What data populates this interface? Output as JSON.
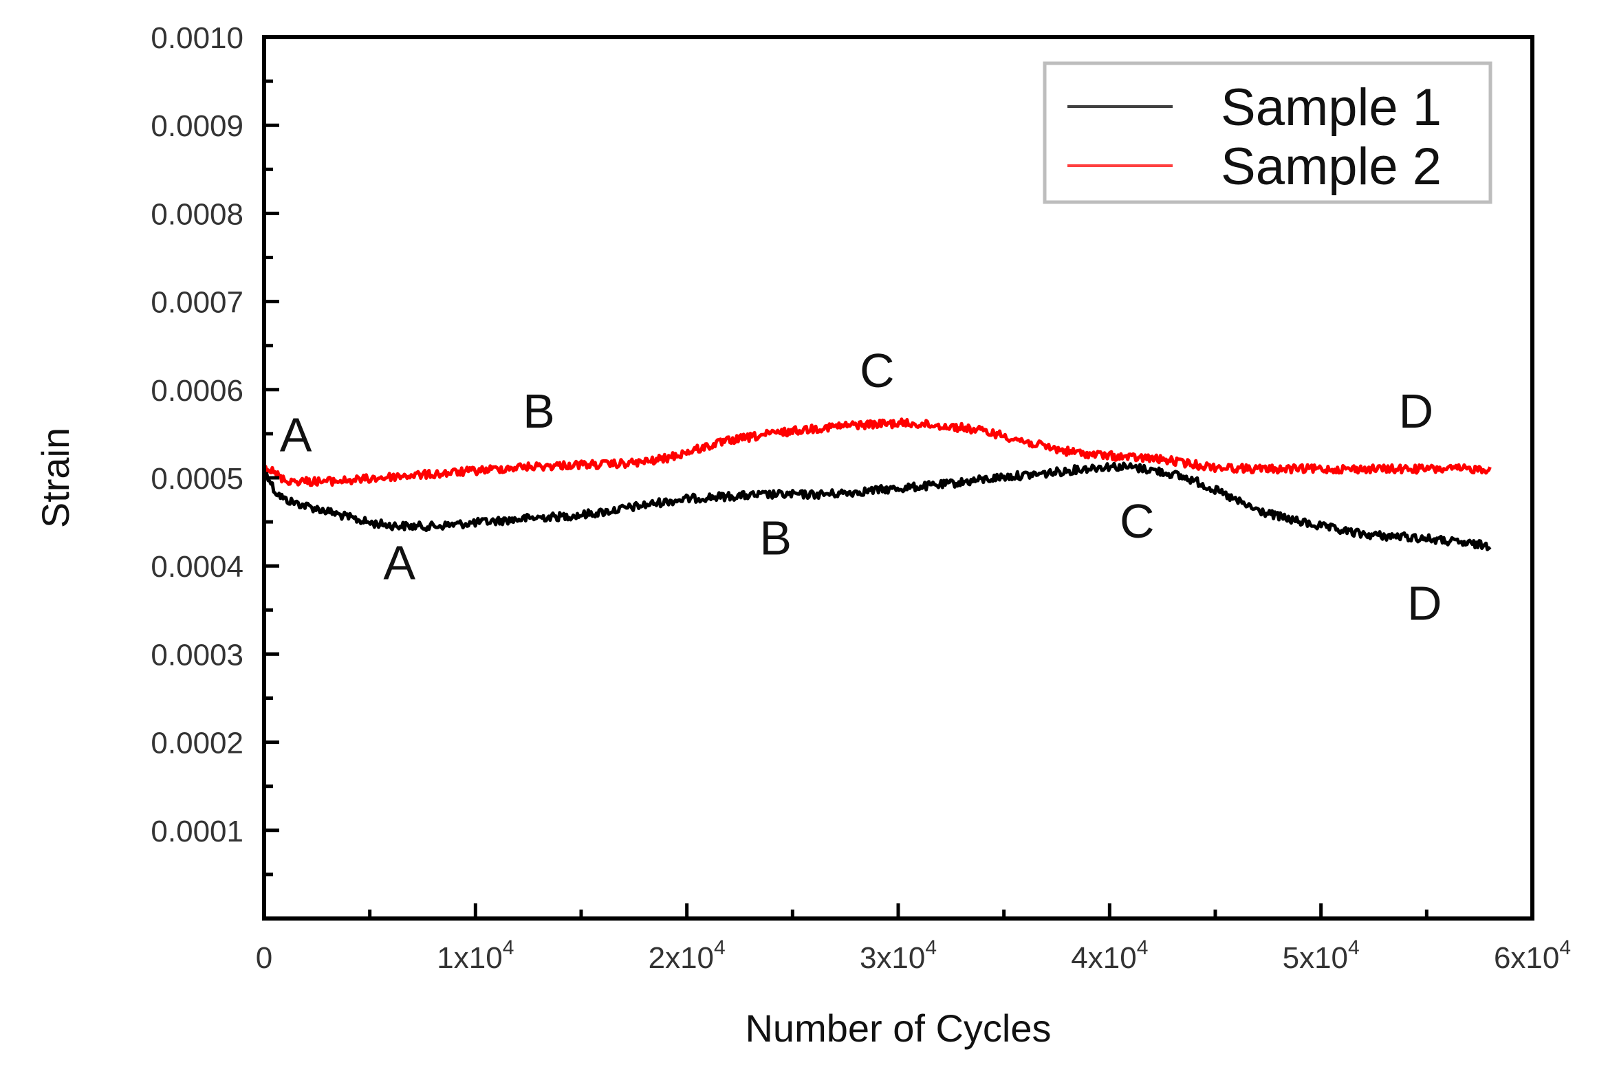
{
  "chart_data": {
    "type": "line",
    "title": "",
    "xlabel": "Number of Cycles",
    "ylabel": "Strain",
    "xlim": [
      0,
      60000
    ],
    "ylim": [
      0.0,
      0.001
    ],
    "grid": false,
    "legend_position": "top-right",
    "x_ticks": [
      {
        "value": 0,
        "mantissa": "0",
        "exp": ""
      },
      {
        "value": 10000,
        "mantissa": "1x10",
        "exp": "4"
      },
      {
        "value": 20000,
        "mantissa": "2x10",
        "exp": "4"
      },
      {
        "value": 30000,
        "mantissa": "3x10",
        "exp": "4"
      },
      {
        "value": 40000,
        "mantissa": "4x10",
        "exp": "4"
      },
      {
        "value": 50000,
        "mantissa": "5x10",
        "exp": "4"
      },
      {
        "value": 60000,
        "mantissa": "6x10",
        "exp": "4"
      }
    ],
    "y_ticks": [
      {
        "value": 0.0001,
        "label": "0.0001"
      },
      {
        "value": 0.0002,
        "label": "0.0002"
      },
      {
        "value": 0.0003,
        "label": "0.0003"
      },
      {
        "value": 0.0004,
        "label": "0.0004"
      },
      {
        "value": 0.0005,
        "label": "0.0005"
      },
      {
        "value": 0.0006,
        "label": "0.0006"
      },
      {
        "value": 0.0007,
        "label": "0.0007"
      },
      {
        "value": 0.0008,
        "label": "0.0008"
      },
      {
        "value": 0.0009,
        "label": "0.0009"
      },
      {
        "value": 0.001,
        "label": "0.0010"
      }
    ],
    "series": [
      {
        "name": "Sample 1",
        "color": "#000000",
        "x": [
          0,
          500,
          1000,
          2000,
          3000,
          4000,
          5000,
          6000,
          7000,
          8000,
          9000,
          10000,
          11000,
          12000,
          13000,
          14000,
          15000,
          16000,
          17000,
          18000,
          19000,
          20000,
          21000,
          22000,
          23000,
          24000,
          25000,
          26000,
          27000,
          28000,
          29000,
          30000,
          31000,
          32000,
          33000,
          34000,
          35000,
          36000,
          37000,
          38000,
          39000,
          40000,
          41000,
          42000,
          43000,
          44000,
          45000,
          46000,
          47000,
          48000,
          49000,
          50000,
          51000,
          52000,
          53000,
          54000,
          55000,
          56000,
          57000,
          58000
        ],
        "values": [
          0.000512,
          0.000485,
          0.000475,
          0.000468,
          0.000462,
          0.000455,
          0.000449,
          0.000446,
          0.000445,
          0.000445,
          0.000447,
          0.000449,
          0.000451,
          0.000453,
          0.000455,
          0.000456,
          0.000458,
          0.000461,
          0.000465,
          0.000469,
          0.000473,
          0.000476,
          0.000478,
          0.000479,
          0.00048,
          0.000481,
          0.000481,
          0.000481,
          0.000482,
          0.000484,
          0.000486,
          0.000488,
          0.00049,
          0.000492,
          0.000495,
          0.000498,
          0.000501,
          0.000503,
          0.000505,
          0.000508,
          0.000511,
          0.000513,
          0.000512,
          0.000509,
          0.000504,
          0.000497,
          0.000486,
          0.000474,
          0.000463,
          0.000456,
          0.00045,
          0.000445,
          0.00044,
          0.000436,
          0.000434,
          0.000433,
          0.000431,
          0.000428,
          0.000425,
          0.000423
        ]
      },
      {
        "name": "Sample 2",
        "color": "#ff0000",
        "x": [
          0,
          500,
          1000,
          2000,
          3000,
          4000,
          5000,
          6000,
          7000,
          8000,
          9000,
          10000,
          11000,
          12000,
          13000,
          14000,
          15000,
          16000,
          17000,
          18000,
          19000,
          20000,
          21000,
          22000,
          23000,
          24000,
          25000,
          26000,
          27000,
          28000,
          29000,
          30000,
          31000,
          32000,
          33000,
          34000,
          35000,
          36000,
          37000,
          38000,
          39000,
          40000,
          41000,
          42000,
          43000,
          44000,
          45000,
          46000,
          47000,
          48000,
          49000,
          50000,
          51000,
          52000,
          53000,
          54000,
          55000,
          56000,
          57000,
          58000
        ],
        "values": [
          0.000515,
          0.000505,
          0.000497,
          0.000496,
          0.000496,
          0.000497,
          0.000499,
          0.000501,
          0.000503,
          0.000504,
          0.000506,
          0.000508,
          0.00051,
          0.000512,
          0.000513,
          0.000514,
          0.000515,
          0.000515,
          0.000516,
          0.000518,
          0.000522,
          0.000529,
          0.000536,
          0.000542,
          0.000546,
          0.00055,
          0.000553,
          0.000556,
          0.000558,
          0.00056,
          0.000561,
          0.000562,
          0.000561,
          0.000559,
          0.000557,
          0.000553,
          0.000548,
          0.000541,
          0.000535,
          0.00053,
          0.000527,
          0.000525,
          0.000523,
          0.000522,
          0.000519,
          0.000515,
          0.000512,
          0.000511,
          0.00051,
          0.00051,
          0.00051,
          0.00051,
          0.00051,
          0.00051,
          0.00051,
          0.00051,
          0.00051,
          0.00051,
          0.00051,
          0.00051
        ]
      }
    ],
    "annotations": [
      {
        "text": "A",
        "x": 1500,
        "y": 0.00053,
        "series": "Sample 2"
      },
      {
        "text": "B",
        "x": 13000,
        "y": 0.000557,
        "series": "Sample 2"
      },
      {
        "text": "C",
        "x": 29000,
        "y": 0.000603,
        "series": "Sample 2"
      },
      {
        "text": "D",
        "x": 54500,
        "y": 0.000557,
        "series": "Sample 2"
      },
      {
        "text": "A",
        "x": 6400,
        "y": 0.000385,
        "series": "Sample 1"
      },
      {
        "text": "B",
        "x": 24200,
        "y": 0.000413,
        "series": "Sample 1"
      },
      {
        "text": "C",
        "x": 41300,
        "y": 0.000432,
        "series": "Sample 1"
      },
      {
        "text": "D",
        "x": 54900,
        "y": 0.000339,
        "series": "Sample 1"
      }
    ]
  }
}
